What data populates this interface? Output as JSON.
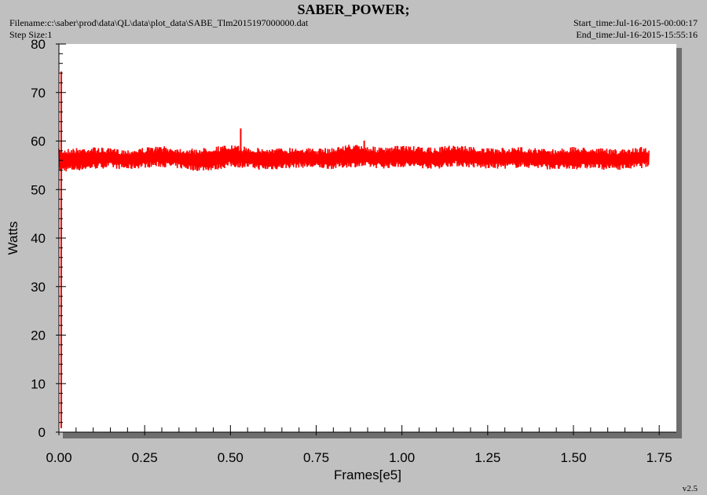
{
  "header": {
    "title": "SABER_POWER;",
    "filename": "Filename:c:\\saber\\prod\\data\\QL\\data\\plot_data\\SABE_Tlm2015197000000.dat",
    "step_size": "Step Size:1",
    "start_time": "Start_time:Jul-16-2015-00:00:17",
    "end_time": "End_time:Jul-16-2015-15:55:16"
  },
  "footer": {
    "version": "v2.5"
  },
  "chart_data": {
    "type": "line",
    "title": "SABER_POWER;",
    "xlabel": "Frames[e5]",
    "ylabel": "Watts",
    "xlim": [
      0.0,
      1.8
    ],
    "ylim": [
      0,
      80
    ],
    "x_ticks": [
      "0.00",
      "0.25",
      "0.50",
      "0.75",
      "1.00",
      "1.25",
      "1.50",
      "1.75"
    ],
    "x_tick_values": [
      0.0,
      0.25,
      0.5,
      0.75,
      1.0,
      1.25,
      1.5,
      1.75
    ],
    "y_ticks": [
      "0",
      "10",
      "20",
      "30",
      "40",
      "50",
      "60",
      "70",
      "80"
    ],
    "y_tick_values": [
      0,
      10,
      20,
      30,
      40,
      50,
      60,
      70,
      80
    ],
    "grid": false,
    "series": [
      {
        "color": "#ff0000",
        "band": [
          {
            "x": 0.0,
            "lo": 53.6,
            "hi": 58.4
          },
          {
            "x": 0.05,
            "lo": 53.8,
            "hi": 58.6
          },
          {
            "x": 0.1,
            "lo": 54.2,
            "hi": 58.8
          },
          {
            "x": 0.15,
            "lo": 54.4,
            "hi": 58.5
          },
          {
            "x": 0.2,
            "lo": 54.0,
            "hi": 58.3
          },
          {
            "x": 0.25,
            "lo": 54.5,
            "hi": 58.7
          },
          {
            "x": 0.3,
            "lo": 54.6,
            "hi": 59.0
          },
          {
            "x": 0.35,
            "lo": 54.3,
            "hi": 58.6
          },
          {
            "x": 0.4,
            "lo": 53.8,
            "hi": 58.4
          },
          {
            "x": 0.45,
            "lo": 53.9,
            "hi": 58.9
          },
          {
            "x": 0.5,
            "lo": 54.6,
            "hi": 59.2
          },
          {
            "x": 0.55,
            "lo": 54.4,
            "hi": 58.8
          },
          {
            "x": 0.6,
            "lo": 53.9,
            "hi": 58.5
          },
          {
            "x": 0.65,
            "lo": 54.2,
            "hi": 58.6
          },
          {
            "x": 0.7,
            "lo": 54.5,
            "hi": 58.8
          },
          {
            "x": 0.75,
            "lo": 54.3,
            "hi": 58.4
          },
          {
            "x": 0.8,
            "lo": 54.2,
            "hi": 58.7
          },
          {
            "x": 0.85,
            "lo": 54.6,
            "hi": 59.4
          },
          {
            "x": 0.9,
            "lo": 54.5,
            "hi": 59.0
          },
          {
            "x": 0.95,
            "lo": 54.3,
            "hi": 58.6
          },
          {
            "x": 1.0,
            "lo": 54.6,
            "hi": 59.2
          },
          {
            "x": 1.05,
            "lo": 54.4,
            "hi": 58.8
          },
          {
            "x": 1.1,
            "lo": 54.2,
            "hi": 58.6
          },
          {
            "x": 1.15,
            "lo": 54.8,
            "hi": 59.3
          },
          {
            "x": 1.2,
            "lo": 54.5,
            "hi": 58.9
          },
          {
            "x": 1.25,
            "lo": 54.2,
            "hi": 58.5
          },
          {
            "x": 1.3,
            "lo": 54.3,
            "hi": 58.6
          },
          {
            "x": 1.35,
            "lo": 54.5,
            "hi": 58.8
          },
          {
            "x": 1.4,
            "lo": 54.3,
            "hi": 58.5
          },
          {
            "x": 1.45,
            "lo": 54.0,
            "hi": 58.4
          },
          {
            "x": 1.5,
            "lo": 54.1,
            "hi": 58.8
          },
          {
            "x": 1.55,
            "lo": 54.3,
            "hi": 58.7
          },
          {
            "x": 1.6,
            "lo": 54.0,
            "hi": 58.4
          },
          {
            "x": 1.65,
            "lo": 54.1,
            "hi": 58.3
          },
          {
            "x": 1.7,
            "lo": 54.4,
            "hi": 58.9
          },
          {
            "x": 1.72,
            "lo": 54.6,
            "hi": 58.6
          }
        ],
        "spikes": [
          {
            "x": 0.53,
            "value": 62.6
          },
          {
            "x": 0.89,
            "value": 60.1
          }
        ]
      }
    ]
  }
}
